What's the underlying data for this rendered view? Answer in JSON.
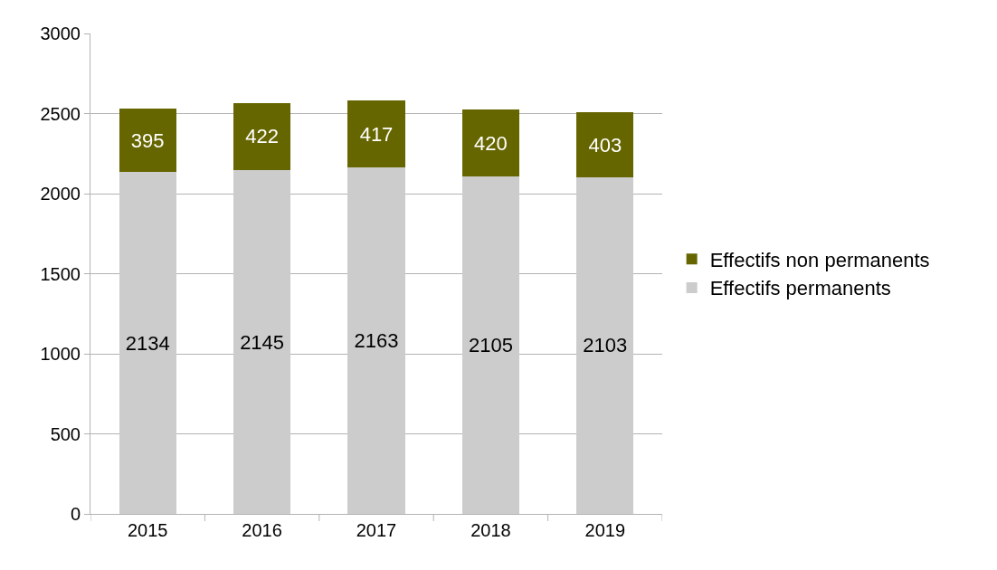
{
  "chart_data": {
    "type": "bar",
    "stacked": true,
    "categories": [
      "2015",
      "2016",
      "2017",
      "2018",
      "2019"
    ],
    "series": [
      {
        "name": "Effectifs permanents",
        "color": "#cccccc",
        "values": [
          2134,
          2145,
          2163,
          2105,
          2103
        ]
      },
      {
        "name": "Effectifs non permanents",
        "color": "#666600",
        "values": [
          395,
          422,
          417,
          420,
          403
        ]
      }
    ],
    "ylim": [
      0,
      3000
    ],
    "yticks": [
      0,
      500,
      1000,
      1500,
      2000,
      2500,
      3000
    ],
    "grid": "y",
    "legend": "right",
    "data_labels": true
  }
}
